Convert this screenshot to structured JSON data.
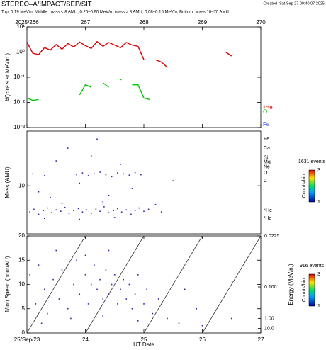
{
  "header": {
    "title": "STEREO–A/IMPACT/SEP/SIT",
    "created": "Created–Sat Sep 27 09:40:07 2025",
    "subtitle": "Top: 0.19 MeV/n; Middle: mass < 8 AMU, 0.25–0.90 MeV/n; mass > 8 AMU, 0.08–0.15 MeV/n; Bottom: Mass 10–70 AMU"
  },
  "chart_data": [
    {
      "type": "line",
      "ylabel": "#/(cm² s sr MeV/n.)",
      "ylog": true,
      "xlim": [
        266,
        270
      ],
      "xticks": [
        {
          "value": 266,
          "label": "2025/266"
        },
        267,
        268,
        269,
        270
      ],
      "ylim": [
        0.001,
        10
      ],
      "yticks": [
        {
          "value": 0.001,
          "label": "10⁻³"
        },
        {
          "value": 0.01,
          "label": "10⁻²"
        },
        {
          "value": 0.1,
          "label": "10⁻¹"
        },
        {
          "value": 1,
          "label": "10⁰"
        },
        {
          "value": 10,
          "label": "10¹"
        }
      ],
      "x": [
        266.0,
        266.1,
        266.2,
        266.3,
        266.4,
        266.5,
        266.6,
        266.7,
        266.8,
        266.9,
        267.0,
        267.1,
        267.2,
        267.3,
        267.4,
        267.5,
        267.6,
        267.7,
        267.8,
        267.9,
        268.0,
        268.1,
        268.2,
        268.3,
        268.4,
        268.5,
        268.6,
        268.7,
        268.8,
        268.9,
        269.0,
        269.1,
        269.2,
        269.3,
        269.4,
        269.5,
        269.6,
        269.7,
        269.8,
        269.9
      ],
      "series": [
        {
          "name": "⁴He",
          "color": "#e00000",
          "values": [
            2.5,
            0.9,
            0.8,
            1.5,
            1.2,
            2.0,
            1.3,
            2.2,
            1.6,
            2.5,
            1.8,
            1.4,
            2.6,
            1.7,
            2.4,
            1.9,
            1.5,
            2.4,
            1.9,
            1.7,
            0.5,
            null,
            0.5,
            0.4,
            0.25,
            null,
            null,
            null,
            null,
            null,
            null,
            null,
            null,
            null,
            1.0,
            0.7,
            null,
            null,
            null,
            null
          ]
        },
        {
          "name": "O",
          "color": "#00c800",
          "values": [
            0.015,
            0.012,
            0.013,
            null,
            null,
            null,
            null,
            null,
            null,
            0.02,
            0.05,
            0.04,
            null,
            0.06,
            0.04,
            null,
            0.08,
            null,
            0.05,
            0.05,
            0.015,
            0.013,
            null,
            null,
            null,
            null,
            null,
            null,
            null,
            null,
            null,
            null,
            null,
            null,
            null,
            null,
            null,
            null,
            null,
            null
          ]
        },
        {
          "name": "Fe",
          "color": "#2040ff",
          "values": [
            null,
            null,
            null,
            null,
            null,
            null,
            null,
            null,
            null,
            null,
            null,
            null,
            null,
            null,
            null,
            null,
            null,
            null,
            null,
            null,
            null,
            null,
            null,
            null,
            null,
            null,
            null,
            null,
            null,
            null,
            null,
            null,
            null,
            null,
            null,
            null,
            null,
            null,
            null,
            null
          ]
        }
      ]
    },
    {
      "type": "scatter",
      "ylabel": "Mass (AMU)",
      "ylog": true,
      "color": "#2a2aa8",
      "xlim": [
        266,
        270
      ],
      "ylim": [
        1.7,
        75
      ],
      "yticks": [
        10
      ],
      "x": [
        266.05,
        266.12,
        266.2,
        266.28,
        266.35,
        266.42,
        266.5,
        266.58,
        266.65,
        266.72,
        266.8,
        266.88,
        266.95,
        267.02,
        267.1,
        267.18,
        267.25,
        267.32,
        267.4,
        267.48,
        267.55,
        267.62,
        267.7,
        267.78,
        267.85,
        267.92,
        268.0,
        268.08,
        266.3,
        266.9,
        267.5,
        266.6,
        267.3,
        266.85,
        266.95,
        267.05,
        267.15,
        267.25,
        267.35,
        267.45,
        267.55,
        267.65,
        267.75,
        267.85,
        267.95,
        266.1,
        266.3,
        266.2,
        266.5,
        266.9,
        267.1,
        267.4,
        267.6,
        267.8,
        268.2,
        268.5,
        266.7,
        267.2,
        268.3,
        266.4
      ],
      "y": [
        3.8,
        4.2,
        3.5,
        4.0,
        4.4,
        3.7,
        4.1,
        3.9,
        4.5,
        3.6,
        4.0,
        4.3,
        3.8,
        4.1,
        3.6,
        4.2,
        3.9,
        4.6,
        3.7,
        4.0,
        4.3,
        3.8,
        4.1,
        3.5,
        4.0,
        4.4,
        3.9,
        4.2,
        3.0,
        2.9,
        3.1,
        5.2,
        5.5,
        15,
        16,
        14.5,
        15.5,
        16.5,
        15,
        14,
        16,
        15.5,
        14.8,
        16.2,
        15,
        15.5,
        14.5,
        8,
        25,
        11,
        30,
        7,
        22,
        9,
        5,
        12,
        40,
        56,
        3.8,
        6.5
      ],
      "species": [
        {
          "label": "Fe",
          "mass": 56
        },
        {
          "label": "Ca",
          "mass": 40
        },
        {
          "label": "Si",
          "mass": 28
        },
        {
          "label": "Mg",
          "mass": 24
        },
        {
          "label": "Ne",
          "mass": 20
        },
        {
          "label": "O",
          "mass": 16
        },
        {
          "label": "C",
          "mass": 12
        },
        {
          "label": "⁴He",
          "mass": 4
        },
        {
          "label": "³He",
          "mass": 3
        }
      ],
      "colorbar": {
        "title": "1631 events",
        "label": "Counts/bin",
        "ticks": [
          1,
          3
        ]
      }
    },
    {
      "type": "scatter",
      "ylabel": "1/Ion Speed (hour/AU)",
      "xlabel": "UT Date",
      "color": "#2a2aa8",
      "xlim": [
        266,
        270
      ],
      "xticks": [
        {
          "value": 266,
          "label": "25/Sep/23"
        },
        {
          "value": 267,
          "label": "24"
        },
        {
          "value": 268,
          "label": "25"
        },
        {
          "value": 269,
          "label": "26"
        },
        {
          "value": 270,
          "label": "27"
        }
      ],
      "ylim": [
        0,
        20
      ],
      "yticks": [
        0,
        5,
        10,
        15,
        20
      ],
      "y2label": "Energy (MeV/n.)",
      "y2ticks": [
        {
          "value": 0.0225,
          "label": "0.0225"
        },
        {
          "value": 0.1,
          "label": "0.100"
        },
        {
          "value": 1,
          "label": "1.00"
        },
        {
          "value": 10,
          "label": "10.0"
        }
      ],
      "x": [
        266.05,
        266.15,
        266.2,
        266.3,
        266.35,
        266.45,
        266.55,
        266.6,
        266.7,
        266.8,
        266.85,
        266.9,
        267.0,
        267.05,
        267.1,
        267.15,
        267.2,
        267.25,
        267.3,
        267.35,
        267.4,
        267.45,
        267.5,
        267.55,
        267.6,
        267.65,
        267.7,
        267.75,
        267.8,
        267.85,
        267.9,
        268.0,
        268.05,
        268.15,
        268.25,
        268.4,
        268.6,
        268.9,
        269.5,
        266.5,
        267.0,
        267.4,
        266.25,
        266.75,
        267.3,
        267.9,
        269.0,
        268.7
      ],
      "y": [
        12,
        6,
        14,
        9,
        4,
        11,
        7,
        13,
        5,
        10,
        15,
        8,
        12,
        6,
        10,
        14,
        9,
        11,
        7,
        13,
        8,
        10,
        12,
        6,
        9,
        11,
        7,
        10,
        5,
        8,
        12,
        6,
        9,
        4,
        7,
        3,
        2,
        5,
        3,
        17,
        16,
        17,
        2,
        3,
        3.5,
        2.5,
        1.5,
        9
      ],
      "guides": [
        {
          "x": [
            266,
            267
          ],
          "y": [
            0,
            20
          ]
        },
        {
          "x": [
            267,
            268
          ],
          "y": [
            0,
            20
          ]
        },
        {
          "x": [
            268,
            269
          ],
          "y": [
            0,
            20
          ]
        },
        {
          "x": [
            269,
            270
          ],
          "y": [
            0,
            20
          ]
        }
      ],
      "colorbar": {
        "title": "916 events",
        "label": "Counts/bin",
        "ticks": [
          1,
          3
        ]
      }
    }
  ]
}
